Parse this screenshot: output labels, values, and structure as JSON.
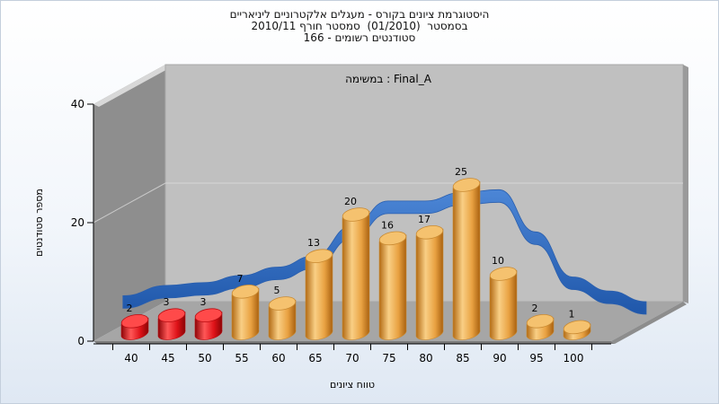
{
  "chart_data": {
    "type": "bar",
    "title_lines": [
      "היסטוגרמת ציונים בקורס - מעגלים אלקטרוניים ליניאריים",
      "בסמסטר  (01/2010)  סמסטר חורף 2010/11",
      "סטודנטים רשומים - 166"
    ],
    "annotation": "במשימה : Final_A",
    "xlabel": "טווח ציונים",
    "ylabel": "מספר סטודנטים",
    "categories": [
      "40",
      "45",
      "50",
      "55",
      "60",
      "65",
      "70",
      "75",
      "80",
      "85",
      "90",
      "95",
      "100"
    ],
    "values": [
      2,
      3,
      3,
      7,
      5,
      13,
      20,
      16,
      17,
      25,
      10,
      2,
      1
    ],
    "ylim": [
      0,
      40
    ],
    "yticks": [
      "0",
      "20",
      "40"
    ],
    "grid": true,
    "bar_colors": [
      "#e0131b",
      "#e0131b",
      "#e0131b",
      "#eca848",
      "#eca848",
      "#eca848",
      "#eca848",
      "#eca848",
      "#eca848",
      "#eca848",
      "#eca848",
      "#eca848",
      "#eca848"
    ],
    "curve_color": "#2f6bbf",
    "back_wall_color": "#c0c0c0",
    "side_wall_color": "#8e8e8e"
  }
}
